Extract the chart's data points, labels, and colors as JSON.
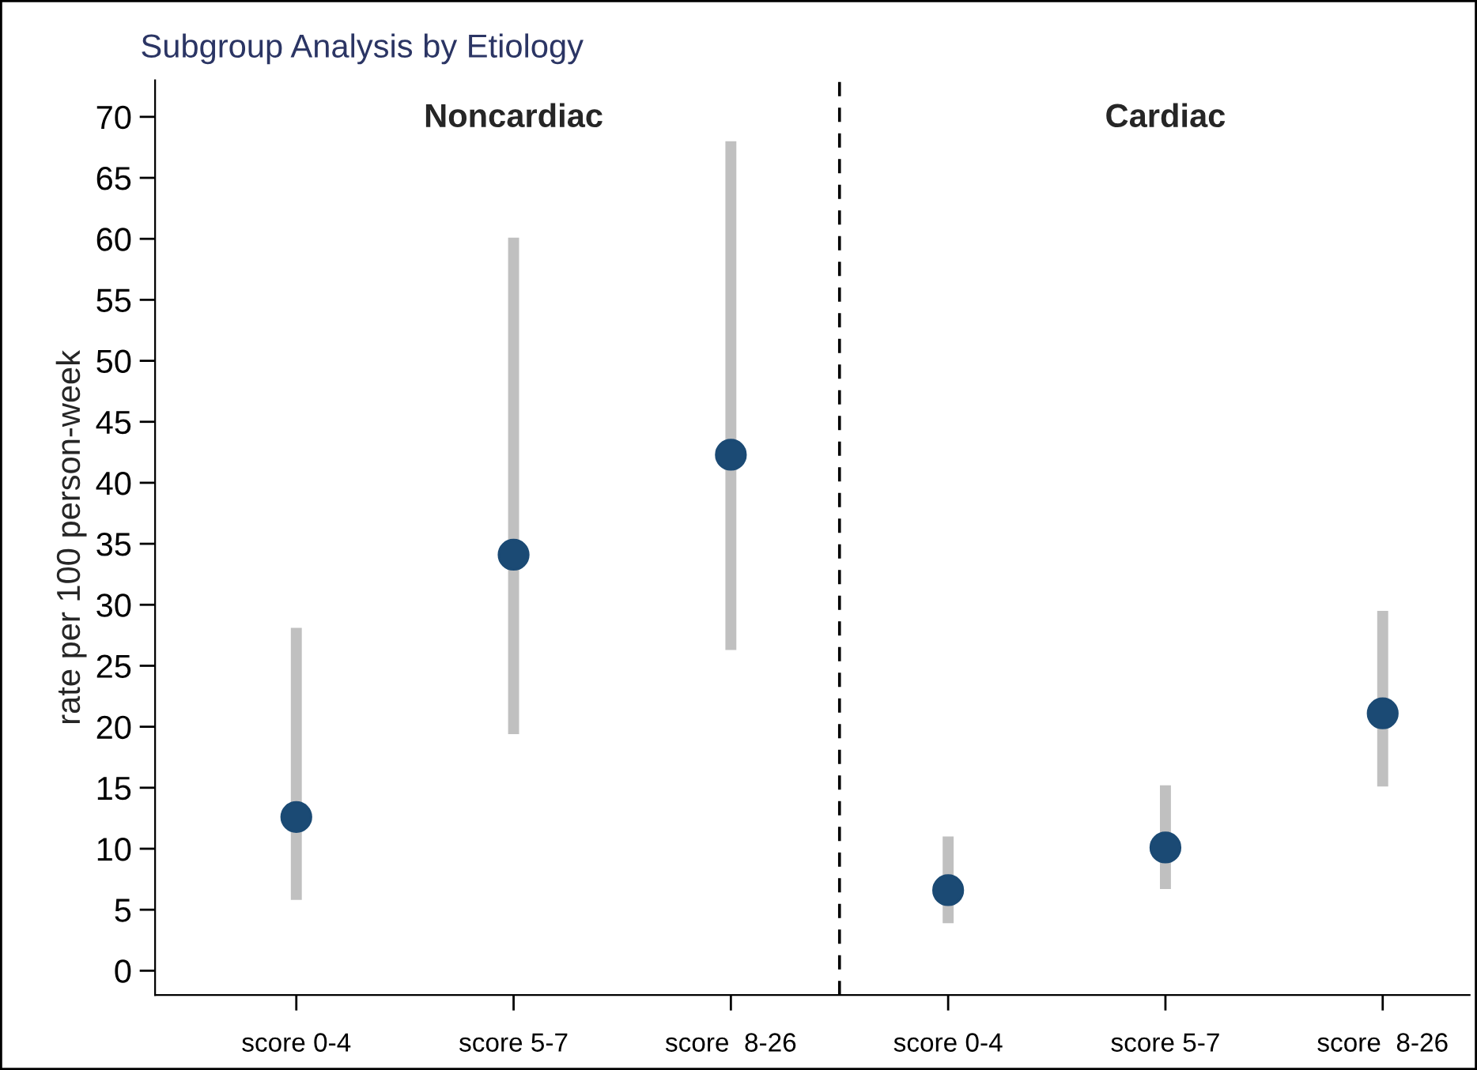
{
  "chart_data": {
    "type": "scatter",
    "title": "Subgroup Analysis by Etiology",
    "ylabel": "rate per 100 person-week",
    "categories": [
      "score 0-4",
      "score 5-7",
      "score  8-26",
      "score 0-4",
      "score 5-7",
      "score  8-26"
    ],
    "series": [
      {
        "color": "#1b4a74",
        "values": [
          12.6,
          34.1,
          42.3,
          6.6,
          10.1,
          21.1
        ],
        "errors": [
          [
            5.8,
            28.1
          ],
          [
            19.4,
            60.1
          ],
          [
            26.3,
            68.0
          ],
          [
            3.9,
            11.0
          ],
          [
            6.7,
            15.2
          ],
          [
            15.1,
            29.5
          ]
        ]
      }
    ],
    "annotations": [
      "Noncardiac",
      "Cardiac"
    ],
    "ylim": [
      -2,
      73
    ],
    "yticks": [
      0,
      5,
      10,
      15,
      20,
      25,
      30,
      35,
      40,
      45,
      50,
      55,
      60,
      65,
      70
    ],
    "marker": "circle",
    "grid": false,
    "legend": false
  }
}
